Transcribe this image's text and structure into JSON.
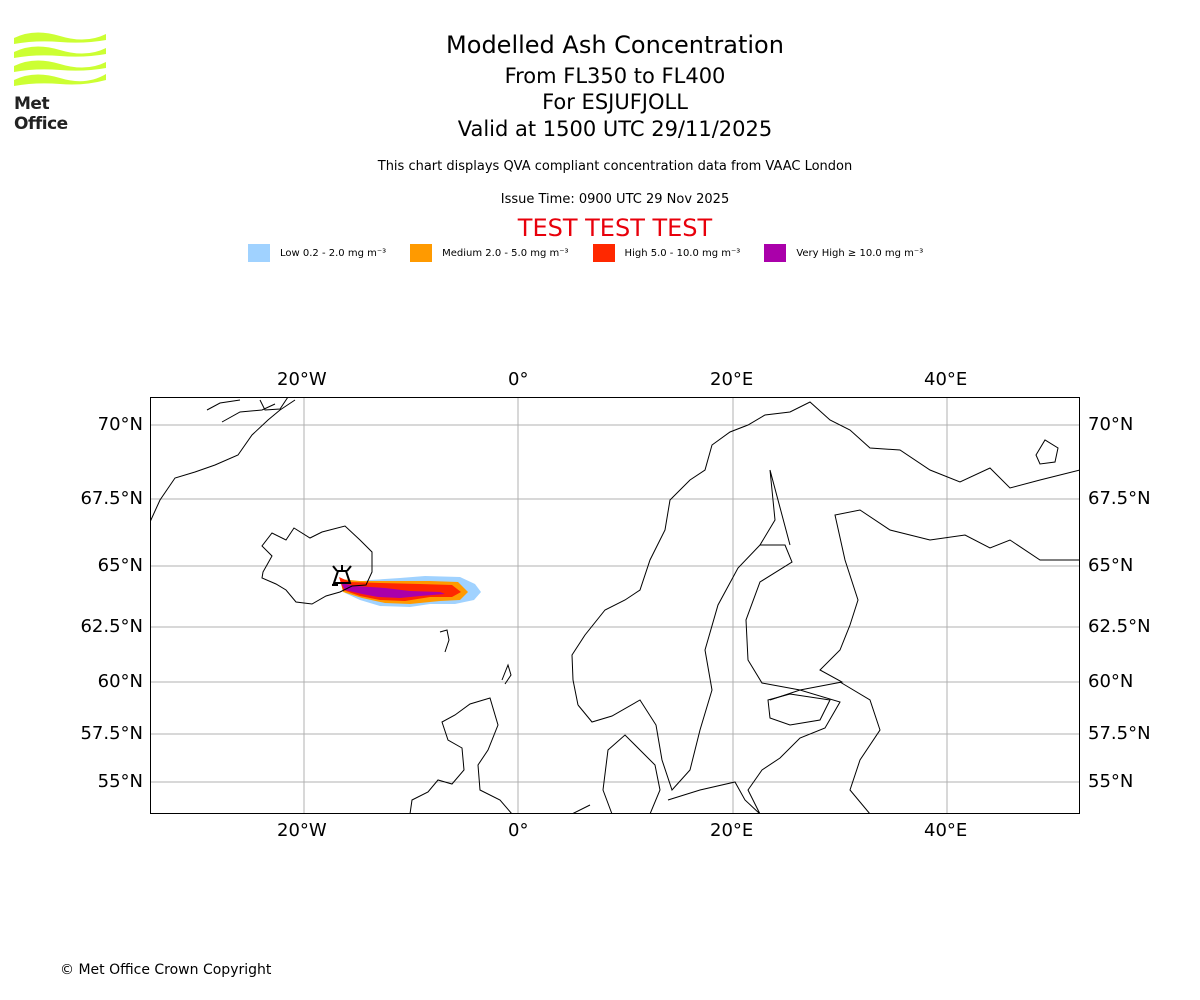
{
  "logo": {
    "text": "Met Office"
  },
  "header": {
    "title": "Modelled Ash Concentration",
    "levels": "From FL350 to FL400",
    "volcano": "For ESJUFJOLL",
    "valid": "Valid at 1500 UTC 29/11/2025",
    "description": "This chart displays QVA compliant concentration data from VAAC London",
    "issue": "Issue Time: 0900 UTC 29 Nov 2025",
    "test_banner": "TEST TEST TEST"
  },
  "legend": [
    {
      "label": "Low 0.2 - 2.0 mg m⁻³",
      "color": "#a0d2ff"
    },
    {
      "label": "Medium 2.0 - 5.0 mg m⁻³",
      "color": "#ff9a00"
    },
    {
      "label": "High 5.0 - 10.0 mg m⁻³",
      "color": "#ff2800"
    },
    {
      "label": "Very High ≥ 10.0 mg m⁻³",
      "color": "#aa00aa"
    }
  ],
  "map": {
    "lon_labels": [
      "20°W",
      "0°",
      "20°E",
      "40°E"
    ],
    "lat_labels": [
      "70°N",
      "67.5°N",
      "65°N",
      "62.5°N",
      "60°N",
      "57.5°N",
      "55°N"
    ]
  },
  "footer": {
    "copyright": "© Met Office Crown Copyright"
  }
}
